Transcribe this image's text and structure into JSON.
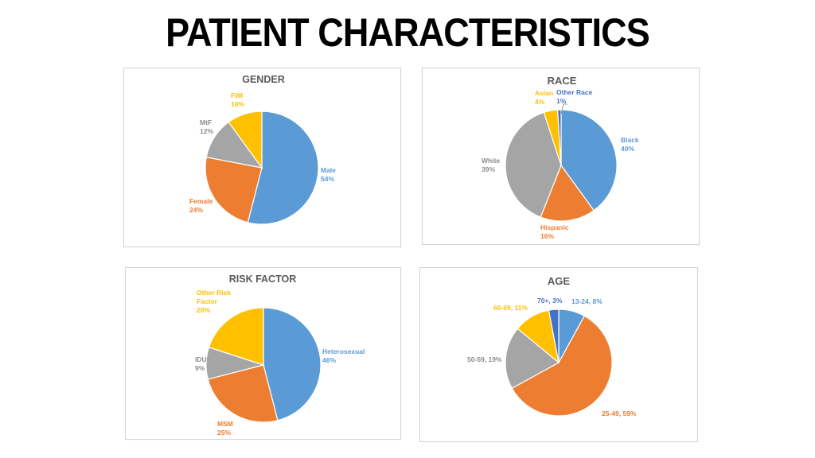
{
  "page": {
    "title": "PATIENT CHARACTERISTICS"
  },
  "chart_data": [
    {
      "type": "pie",
      "title": "GENDER",
      "series": [
        {
          "name": "Male",
          "value": 54,
          "label": "54%",
          "color": "#5B9BD5"
        },
        {
          "name": "Female",
          "value": 24,
          "label": "24%",
          "color": "#ED7D31"
        },
        {
          "name": "MtF",
          "value": 12,
          "label": "12%",
          "color": "#A5A5A5"
        },
        {
          "name": "FtM",
          "value": 10,
          "label": "10%",
          "color": "#FFC000"
        }
      ]
    },
    {
      "type": "pie",
      "title": "RACE",
      "series": [
        {
          "name": "Black",
          "value": 40,
          "label": "40%",
          "color": "#5B9BD5"
        },
        {
          "name": "Hispanic",
          "value": 16,
          "label": "16%",
          "color": "#ED7D31"
        },
        {
          "name": "White",
          "value": 39,
          "label": "39%",
          "color": "#A5A5A5"
        },
        {
          "name": "Asian",
          "value": 4,
          "label": "4%",
          "color": "#FFC000"
        },
        {
          "name": "Other Race",
          "value": 1,
          "label": "1%",
          "color": "#4472C4"
        }
      ]
    },
    {
      "type": "pie",
      "title": "RISK FACTOR",
      "series": [
        {
          "name": "Heterosexual",
          "value": 46,
          "label": "46%",
          "color": "#5B9BD5"
        },
        {
          "name": "MSM",
          "value": 25,
          "label": "25%",
          "color": "#ED7D31"
        },
        {
          "name": "IDU",
          "value": 9,
          "label": "9%",
          "color": "#A5A5A5"
        },
        {
          "name": "Other Risk Factor",
          "value": 20,
          "label": "20%",
          "color": "#FFC000"
        }
      ]
    },
    {
      "type": "pie",
      "title": "AGE",
      "series": [
        {
          "name": "13-24",
          "value": 8,
          "label": "13-24, 8%",
          "color": "#5B9BD5"
        },
        {
          "name": "25-49",
          "value": 59,
          "label": "25-49, 59%",
          "color": "#ED7D31"
        },
        {
          "name": "50-59",
          "value": 19,
          "label": "50-59, 19%",
          "color": "#A5A5A5"
        },
        {
          "name": "60-69",
          "value": 11,
          "label": "60-69, 11%",
          "color": "#FFC000"
        },
        {
          "name": "70+",
          "value": 3,
          "label": "70+, 3%",
          "color": "#4472C4"
        }
      ]
    }
  ]
}
